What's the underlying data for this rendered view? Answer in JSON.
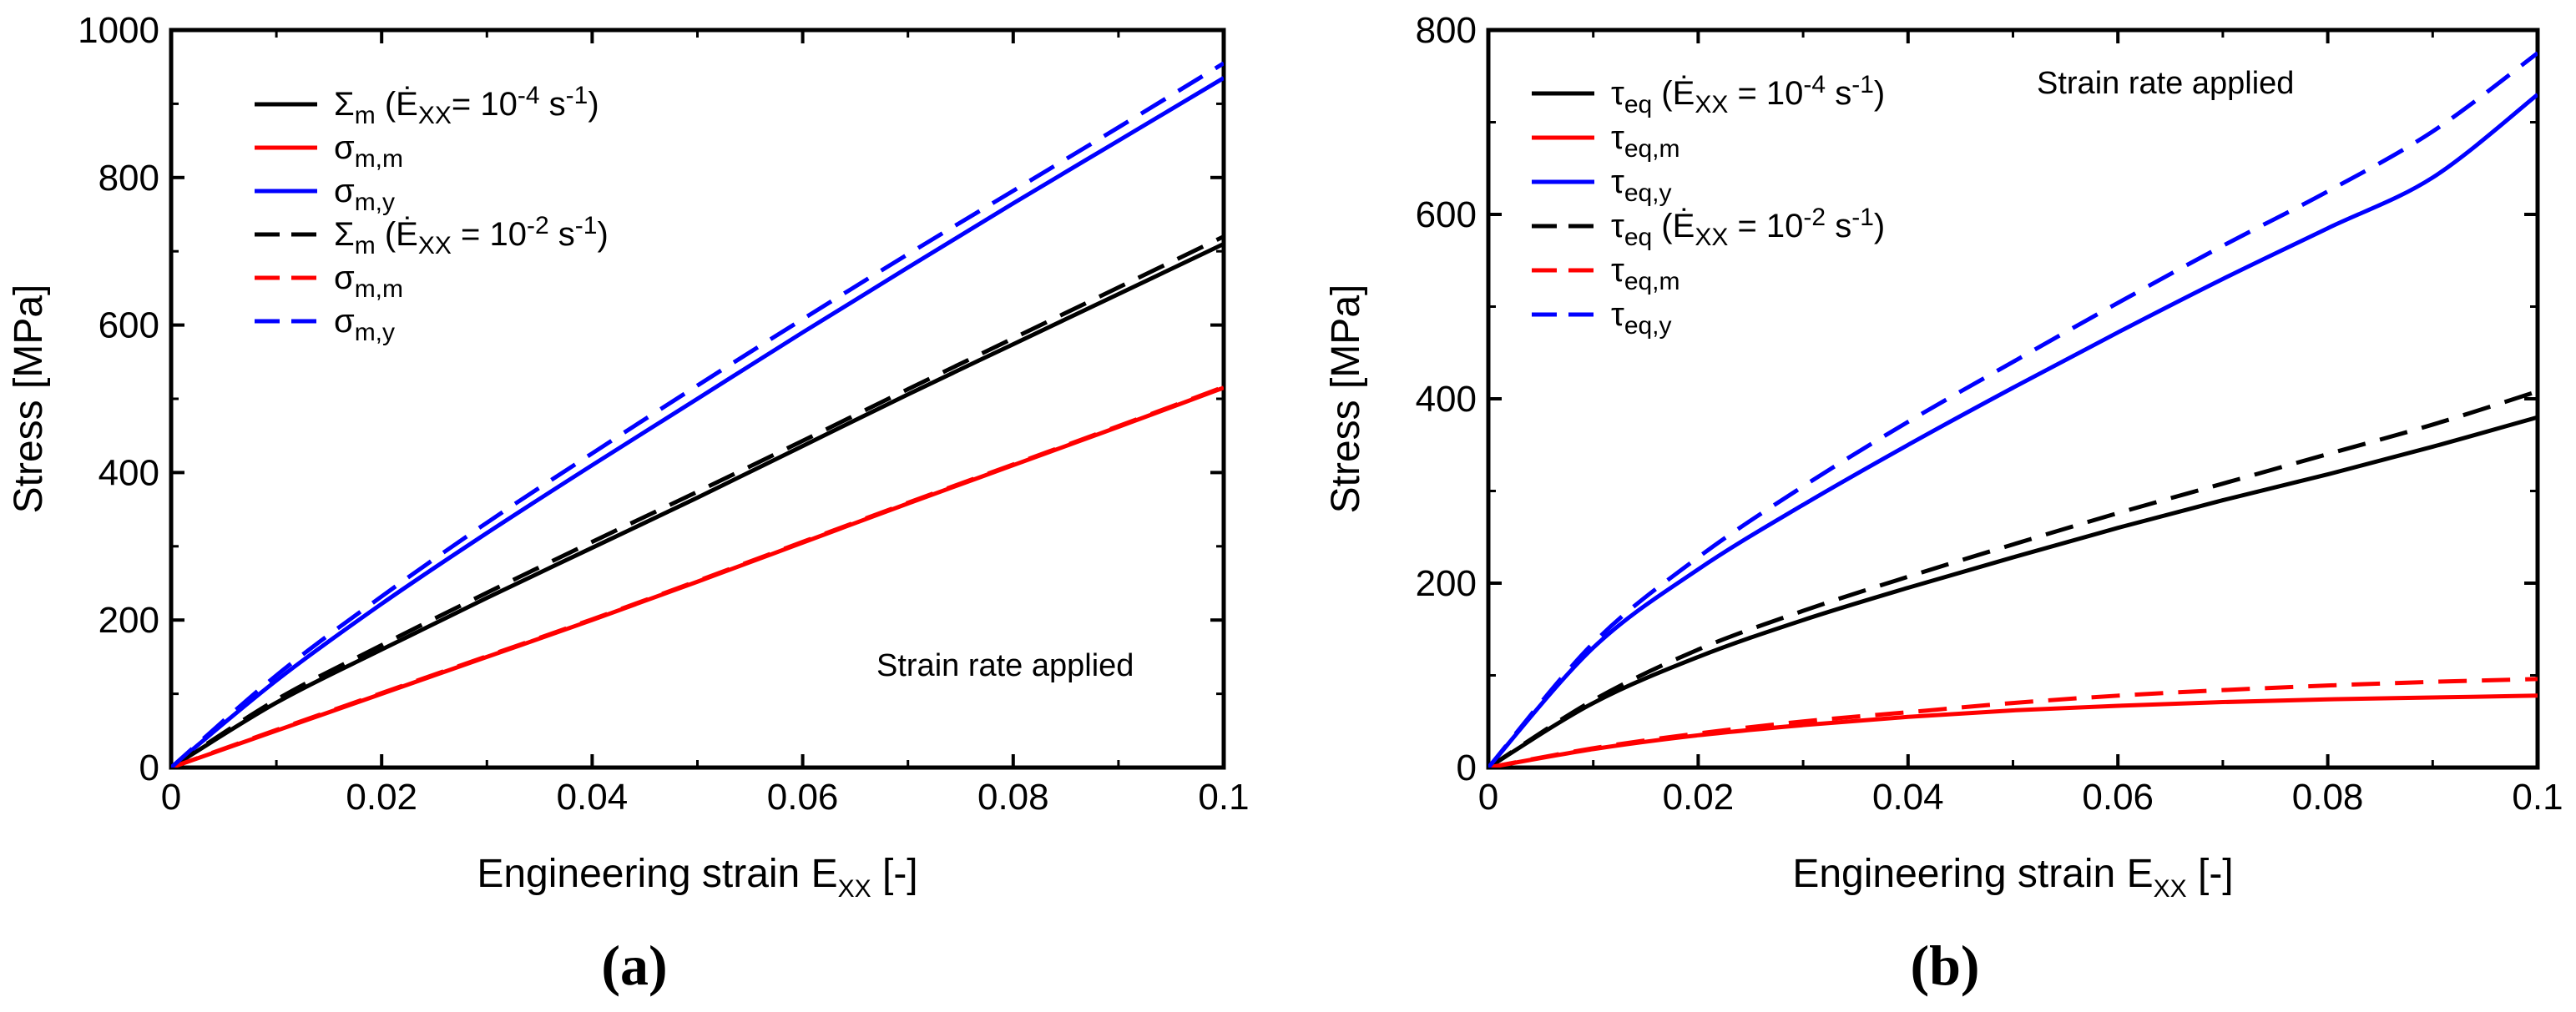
{
  "chart_data": [
    {
      "type": "line",
      "panel_label": "(a)",
      "xlabel": "Engineering strain E",
      "xlabel_sub": "XX",
      "xlabel_suffix": " [-]",
      "ylabel": "Stress [MPa]",
      "xlim": [
        0,
        0.1
      ],
      "ylim": [
        0,
        1000
      ],
      "xticks": [
        0,
        0.02,
        0.04,
        0.06,
        0.08,
        0.1
      ],
      "xtick_labels": [
        "0",
        "0.02",
        "0.04",
        "0.06",
        "0.08",
        "0.1"
      ],
      "yticks": [
        0,
        200,
        400,
        600,
        800,
        1000
      ],
      "ytick_labels": [
        "0",
        "200",
        "400",
        "600",
        "800",
        "1000"
      ],
      "annotation": "Strain rate applied",
      "legend_position": "top-left",
      "series": [
        {
          "name": "Σm (Ė_XX= 10^-4 s^-1)",
          "legend_main": "Σ",
          "legend_sub": "m",
          "legend_rest": " (Ė",
          "legend_sub2": "XX",
          "legend_rest2": "= 10",
          "legend_sup": "-4",
          "legend_rest3": " s",
          "legend_sup2": "-1",
          "legend_end": ")",
          "color": "#000000",
          "dash": "solid",
          "x": [
            0,
            0.01,
            0.02,
            0.03,
            0.04,
            0.05,
            0.06,
            0.07,
            0.08,
            0.09,
            0.1
          ],
          "y": [
            0,
            88,
            160,
            230,
            298,
            366,
            436,
            506,
            574,
            642,
            710
          ]
        },
        {
          "name": "σm,m",
          "legend_main": "σ",
          "legend_sub": "m,m",
          "color": "#ff0000",
          "dash": "solid",
          "x": [
            0,
            0.01,
            0.02,
            0.03,
            0.04,
            0.05,
            0.06,
            0.07,
            0.08,
            0.09,
            0.1
          ],
          "y": [
            0,
            50,
            100,
            150,
            200,
            252,
            305,
            358,
            410,
            462,
            515
          ]
        },
        {
          "name": "σm,y",
          "legend_main": "σ",
          "legend_sub": "m,y",
          "color": "#0000ff",
          "dash": "solid",
          "x": [
            0,
            0.01,
            0.02,
            0.03,
            0.04,
            0.05,
            0.06,
            0.07,
            0.08,
            0.09,
            0.1
          ],
          "y": [
            0,
            118,
            222,
            318,
            410,
            500,
            590,
            678,
            765,
            850,
            935
          ]
        },
        {
          "name": "Σm (Ė_XX = 10^-2 s^-1)",
          "legend_main": "Σ",
          "legend_sub": "m",
          "legend_rest": " (Ė",
          "legend_sub2": "XX",
          "legend_rest2": " = 10",
          "legend_sup": "-2",
          "legend_rest3": " s",
          "legend_sup2": "-1",
          "legend_end": ")",
          "color": "#000000",
          "dash": "dashed",
          "x": [
            0,
            0.01,
            0.02,
            0.03,
            0.04,
            0.05,
            0.06,
            0.07,
            0.08,
            0.09,
            0.1
          ],
          "y": [
            0,
            92,
            166,
            237,
            306,
            374,
            443,
            513,
            582,
            651,
            720
          ]
        },
        {
          "name": "σm,m",
          "legend_main": "σ",
          "legend_sub": "m,m",
          "color": "#ff0000",
          "dash": "dashed",
          "x": [
            0,
            0.01,
            0.02,
            0.03,
            0.04,
            0.05,
            0.06,
            0.07,
            0.08,
            0.09,
            0.1
          ],
          "y": [
            0,
            51,
            101,
            151,
            201,
            253,
            306,
            359,
            411,
            463,
            516
          ]
        },
        {
          "name": "σm,y",
          "legend_main": "σ",
          "legend_sub": "m,y",
          "color": "#0000ff",
          "dash": "dashed",
          "x": [
            0,
            0.01,
            0.02,
            0.03,
            0.04,
            0.05,
            0.06,
            0.07,
            0.08,
            0.09,
            0.1
          ],
          "y": [
            0,
            125,
            232,
            332,
            426,
            518,
            608,
            696,
            782,
            868,
            955
          ]
        }
      ]
    },
    {
      "type": "line",
      "panel_label": "(b)",
      "xlabel": "Engineering strain E",
      "xlabel_sub": "XX",
      "xlabel_suffix": " [-]",
      "ylabel": "Stress [MPa]",
      "xlim": [
        0,
        0.1
      ],
      "ylim": [
        0,
        800
      ],
      "xticks": [
        0,
        0.02,
        0.04,
        0.06,
        0.08,
        0.1
      ],
      "xtick_labels": [
        "0",
        "0.02",
        "0.04",
        "0.06",
        "0.08",
        "0.1"
      ],
      "yticks": [
        0,
        200,
        400,
        600,
        800
      ],
      "ytick_labels": [
        "0",
        "200",
        "400",
        "600",
        "800"
      ],
      "annotation": "Strain rate applied",
      "legend_position": "top-left",
      "series": [
        {
          "name": "τeq (Ė_XX = 10^-4 s^-1)",
          "legend_main": "τ",
          "legend_sub": "eq",
          "legend_rest": " (Ė",
          "legend_sub2": "XX",
          "legend_rest2": " = 10",
          "legend_sup": "-4",
          "legend_rest3": " s",
          "legend_sup2": "-1",
          "legend_end": ")",
          "color": "#000000",
          "dash": "solid",
          "x": [
            0,
            0.01,
            0.02,
            0.03,
            0.04,
            0.05,
            0.06,
            0.07,
            0.08,
            0.09,
            0.1
          ],
          "y": [
            0,
            70,
            120,
            160,
            195,
            228,
            260,
            290,
            318,
            348,
            380
          ]
        },
        {
          "name": "τeq,m",
          "legend_main": "τ",
          "legend_sub": "eq,m",
          "color": "#ff0000",
          "dash": "solid",
          "x": [
            0,
            0.01,
            0.02,
            0.03,
            0.04,
            0.05,
            0.06,
            0.07,
            0.08,
            0.09,
            0.1
          ],
          "y": [
            0,
            20,
            35,
            46,
            55,
            62,
            67,
            71,
            74,
            76,
            78
          ]
        },
        {
          "name": "τeq,y",
          "legend_main": "τ",
          "legend_sub": "eq,y",
          "color": "#0000ff",
          "dash": "solid",
          "x": [
            0,
            0.01,
            0.02,
            0.03,
            0.04,
            0.05,
            0.06,
            0.07,
            0.08,
            0.09,
            0.1
          ],
          "y": [
            0,
            130,
            215,
            285,
            350,
            412,
            472,
            530,
            585,
            640,
            730
          ]
        },
        {
          "name": "τeq (Ė_XX = 10^-2 s^-1)",
          "legend_main": "τ",
          "legend_sub": "eq",
          "legend_rest": " (Ė",
          "legend_sub2": "XX",
          "legend_rest2": " = 10",
          "legend_sup": "-2",
          "legend_rest3": " s",
          "legend_sup2": "-1",
          "legend_end": ")",
          "color": "#000000",
          "dash": "dashed",
          "x": [
            0,
            0.01,
            0.02,
            0.03,
            0.04,
            0.05,
            0.06,
            0.07,
            0.08,
            0.09,
            0.1
          ],
          "y": [
            0,
            73,
            128,
            170,
            207,
            242,
            276,
            308,
            340,
            372,
            408
          ]
        },
        {
          "name": "τeq,m",
          "legend_main": "τ",
          "legend_sub": "eq,m",
          "color": "#ff0000",
          "dash": "dashed",
          "x": [
            0,
            0.01,
            0.02,
            0.03,
            0.04,
            0.05,
            0.06,
            0.07,
            0.08,
            0.09,
            0.1
          ],
          "y": [
            0,
            21,
            37,
            50,
            60,
            70,
            78,
            84,
            89,
            93,
            96
          ]
        },
        {
          "name": "τeq,y",
          "legend_main": "τ",
          "legend_sub": "eq,y",
          "color": "#0000ff",
          "dash": "dashed",
          "x": [
            0,
            0.01,
            0.02,
            0.03,
            0.04,
            0.05,
            0.06,
            0.07,
            0.08,
            0.09,
            0.1
          ],
          "y": [
            0,
            135,
            228,
            305,
            375,
            440,
            504,
            566,
            625,
            690,
            775
          ]
        }
      ]
    }
  ]
}
